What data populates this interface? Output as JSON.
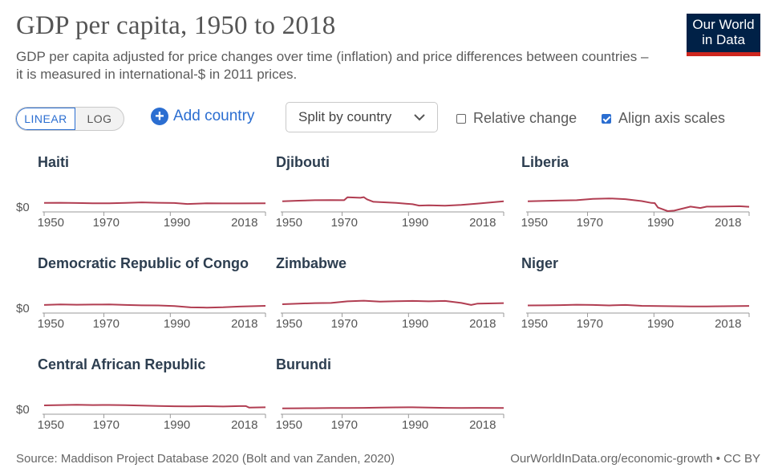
{
  "title": "GDP per capita, 1950 to 2018",
  "subtitle": "GDP per capita adjusted for price changes over time (inflation) and price differences between countries – it is measured in international-$ in 2011 prices.",
  "logo": {
    "line1": "Our World",
    "line2": "in Data"
  },
  "controls": {
    "scale_linear": "LINEAR",
    "scale_log": "LOG",
    "add_country": "Add country",
    "split_by": "Split by country",
    "relative_change": "Relative change",
    "align_axis_scales": "Align axis scales",
    "relative_change_checked": false,
    "align_axis_scales_checked": true
  },
  "footer": {
    "source": "Source: Maddison Project Database 2020 (Bolt and van Zanden, 2020)",
    "url": "OurWorldInData.org/economic-growth • CC BY"
  },
  "colors": {
    "line": "#b13e52",
    "axis": "#9a9a9a",
    "text": "#333333",
    "accent": "#2b6ed1"
  },
  "chart_data": {
    "type": "line",
    "x_ticks": [
      "1950",
      "1970",
      "1990",
      "2018"
    ],
    "y_tick_label": "$0",
    "xlim": [
      1950,
      2018
    ],
    "ylim": [
      0,
      21000
    ],
    "panels": [
      {
        "name": "Haiti",
        "years": [
          1950,
          1955,
          1960,
          1965,
          1970,
          1975,
          1980,
          1985,
          1990,
          1994,
          2000,
          2005,
          2010,
          2018
        ],
        "values": [
          1900,
          1950,
          1850,
          1700,
          1700,
          1900,
          2150,
          1950,
          1850,
          1400,
          1700,
          1650,
          1650,
          1750
        ]
      },
      {
        "name": "Djibouti",
        "years": [
          1950,
          1955,
          1960,
          1965,
          1969,
          1970,
          1974,
          1975,
          1976,
          1978,
          1985,
          1990,
          1992,
          1995,
          2000,
          2005,
          2010,
          2018
        ],
        "values": [
          2600,
          2900,
          3100,
          3200,
          3100,
          4400,
          4200,
          4500,
          3500,
          2400,
          1900,
          1300,
          700,
          800,
          650,
          1000,
          1600,
          2600
        ]
      },
      {
        "name": "Liberia",
        "years": [
          1950,
          1955,
          1960,
          1965,
          1970,
          1975,
          1980,
          1985,
          1988,
          1989,
          1990,
          1993,
          1995,
          2000,
          2003,
          2005,
          2010,
          2015,
          2018
        ],
        "values": [
          2600,
          2800,
          3000,
          3100,
          3700,
          3900,
          3600,
          2700,
          1900,
          1800,
          -200,
          -1800,
          -1600,
          200,
          -400,
          200,
          300,
          400,
          150
        ]
      },
      {
        "name": "Democratic Republic of Congo",
        "years": [
          1950,
          1955,
          1960,
          1965,
          1970,
          1975,
          1980,
          1985,
          1990,
          1995,
          2000,
          2005,
          2010,
          2018
        ],
        "values": [
          1500,
          1700,
          1600,
          1650,
          1700,
          1500,
          1300,
          1250,
          1000,
          400,
          300,
          450,
          750,
          1100
        ]
      },
      {
        "name": "Zimbabwe",
        "years": [
          1950,
          1955,
          1960,
          1965,
          1970,
          1975,
          1980,
          1985,
          1990,
          1995,
          2000,
          2005,
          2008,
          2010,
          2018
        ],
        "values": [
          1800,
          2100,
          2300,
          2400,
          3100,
          3400,
          3000,
          3200,
          3300,
          3100,
          3300,
          2400,
          1500,
          2100,
          2300
        ]
      },
      {
        "name": "Niger",
        "years": [
          1950,
          1955,
          1960,
          1965,
          1970,
          1975,
          1980,
          1985,
          1990,
          1995,
          2000,
          2005,
          2010,
          2018
        ],
        "values": [
          1250,
          1300,
          1400,
          1600,
          1500,
          1250,
          1500,
          1100,
          1000,
          900,
          850,
          850,
          900,
          1050
        ]
      },
      {
        "name": "Central African Republic",
        "years": [
          1950,
          1955,
          1960,
          1965,
          1970,
          1975,
          1980,
          1985,
          1990,
          1995,
          2000,
          2005,
          2010,
          2012,
          2013,
          2018
        ],
        "values": [
          1800,
          1950,
          2100,
          1950,
          2000,
          1900,
          1700,
          1550,
          1400,
          1350,
          1450,
          1300,
          1500,
          1500,
          800,
          950
        ]
      },
      {
        "name": "Burundi",
        "years": [
          1950,
          1955,
          1960,
          1965,
          1970,
          1975,
          1980,
          1985,
          1990,
          1995,
          2000,
          2005,
          2010,
          2018
        ],
        "values": [
          450,
          500,
          550,
          600,
          650,
          700,
          800,
          900,
          950,
          850,
          700,
          650,
          700,
          650
        ]
      }
    ]
  }
}
